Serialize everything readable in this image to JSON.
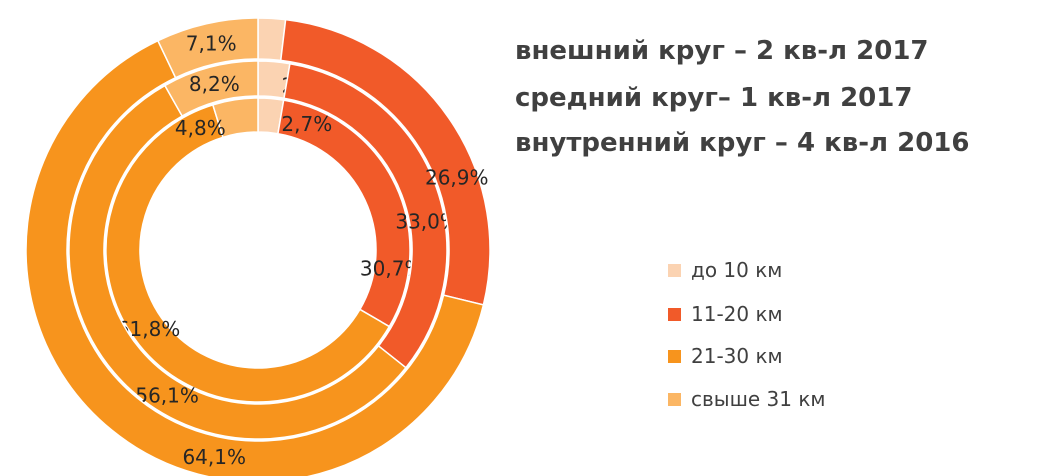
{
  "chart_data": {
    "type": "pie",
    "subtype": "multi-ring doughnut",
    "titles": [
      "внешний круг – 2 кв-л 2017",
      "средний круг– 1 кв-л 2017",
      "внутренний круг – 4 кв-л 2016"
    ],
    "categories": [
      "до 10 км",
      "11-20 км",
      "21-30 км",
      "свыше 31 км"
    ],
    "colors": [
      "#FBD3B2",
      "#F15A29",
      "#F7941D",
      "#FBB664"
    ],
    "series": [
      {
        "name": "4 кв-л 2016",
        "ring": "inner",
        "values": [
          2.7,
          30.7,
          61.8,
          4.8
        ],
        "labels": [
          "",
          "30,7%",
          "61,8%",
          "4,8%"
        ]
      },
      {
        "name": "1 кв-л 2017",
        "ring": "middle",
        "values": [
          2.7,
          33.0,
          56.1,
          8.2
        ],
        "labels": [
          "2,7%",
          "33,0%",
          "56,1%",
          "8,2%"
        ]
      },
      {
        "name": "2 кв-л 2017",
        "ring": "outer",
        "values": [
          1.9,
          26.9,
          64.1,
          7.1
        ],
        "labels": [
          "1,9%",
          "26,9%",
          "64,1%",
          "7,1%"
        ]
      }
    ],
    "inner_extra_label": "2,7%",
    "legend": "right"
  }
}
